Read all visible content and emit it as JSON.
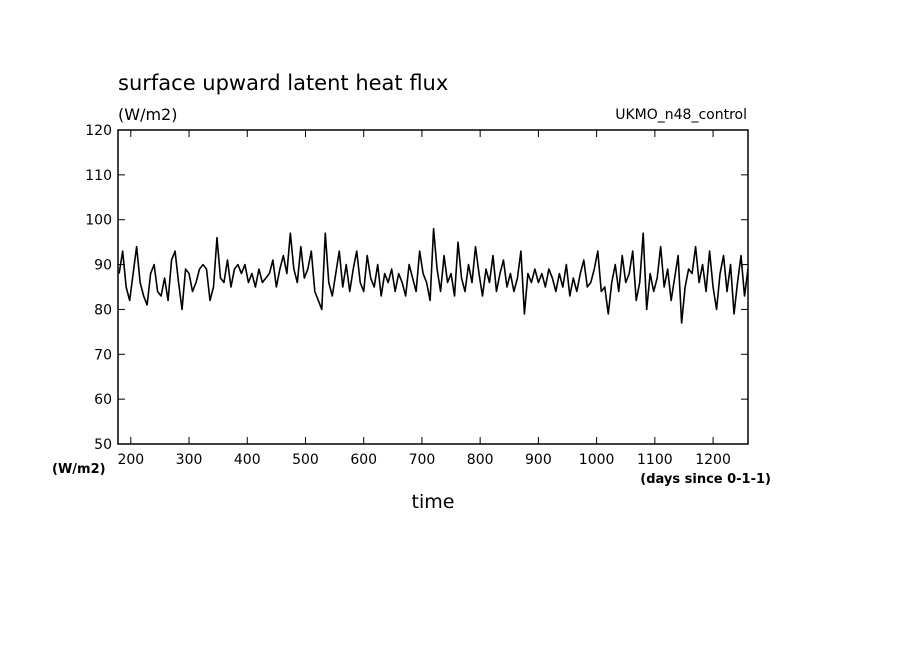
{
  "chart_data": {
    "type": "line",
    "title": "surface upward latent heat flux",
    "units_label": "(W/m2)",
    "subtitle": "UKMO_n48_control",
    "ylabel": "(W/m2)",
    "xunits": "(days since 0-1-1)",
    "xlabel": "time",
    "x": [
      180,
      186,
      192,
      198,
      204,
      210,
      216,
      222,
      228,
      234,
      240,
      246,
      252,
      258,
      264,
      270,
      276,
      282,
      288,
      294,
      300,
      306,
      312,
      318,
      324,
      330,
      336,
      342,
      348,
      354,
      360,
      366,
      372,
      378,
      384,
      390,
      396,
      402,
      408,
      414,
      420,
      426,
      432,
      438,
      444,
      450,
      456,
      462,
      468,
      474,
      480,
      486,
      492,
      498,
      504,
      510,
      516,
      522,
      528,
      534,
      540,
      546,
      552,
      558,
      564,
      570,
      576,
      582,
      588,
      594,
      600,
      606,
      612,
      618,
      624,
      630,
      636,
      642,
      648,
      654,
      660,
      666,
      672,
      678,
      684,
      690,
      696,
      702,
      708,
      714,
      720,
      726,
      732,
      738,
      744,
      750,
      756,
      762,
      768,
      774,
      780,
      786,
      792,
      798,
      804,
      810,
      816,
      822,
      828,
      834,
      840,
      846,
      852,
      858,
      864,
      870,
      876,
      882,
      888,
      894,
      900,
      906,
      912,
      918,
      924,
      930,
      936,
      942,
      948,
      954,
      960,
      966,
      972,
      978,
      984,
      990,
      996,
      1002,
      1008,
      1014,
      1020,
      1026,
      1032,
      1038,
      1044,
      1050,
      1056,
      1062,
      1068,
      1074,
      1080,
      1086,
      1092,
      1098,
      1104,
      1110,
      1116,
      1122,
      1128,
      1134,
      1140,
      1146,
      1152,
      1158,
      1164,
      1170,
      1176,
      1182,
      1188,
      1194,
      1200,
      1206,
      1212,
      1218,
      1224,
      1230,
      1236,
      1242,
      1248,
      1254,
      1260
    ],
    "series": [
      {
        "name": "UKMO_n48_control",
        "color": "#000000",
        "values": [
          88,
          93,
          85,
          82,
          88,
          94,
          86,
          83,
          81,
          88,
          90,
          84,
          83,
          87,
          82,
          91,
          93,
          86,
          80,
          89,
          88,
          84,
          86,
          89,
          90,
          89,
          82,
          85,
          96,
          87,
          86,
          91,
          85,
          89,
          90,
          88,
          90,
          86,
          88,
          85,
          89,
          86,
          87,
          88,
          91,
          85,
          89,
          92,
          88,
          97,
          89,
          86,
          94,
          87,
          89,
          93,
          84,
          82,
          80,
          97,
          86,
          83,
          88,
          93,
          85,
          90,
          84,
          89,
          93,
          86,
          84,
          92,
          87,
          85,
          90,
          83,
          88,
          86,
          89,
          84,
          88,
          86,
          83,
          90,
          87,
          84,
          93,
          88,
          86,
          82,
          98,
          89,
          84,
          92,
          86,
          88,
          83,
          95,
          87,
          84,
          90,
          86,
          94,
          88,
          83,
          89,
          86,
          92,
          84,
          88,
          91,
          85,
          88,
          84,
          87,
          93,
          79,
          88,
          86,
          89,
          86,
          88,
          85,
          89,
          87,
          84,
          88,
          85,
          90,
          83,
          87,
          84,
          88,
          91,
          85,
          86,
          89,
          93,
          84,
          85,
          79,
          86,
          90,
          84,
          92,
          86,
          88,
          93,
          82,
          86,
          97,
          80,
          88,
          84,
          87,
          94,
          85,
          89,
          82,
          87,
          92,
          77,
          85,
          89,
          88,
          94,
          86,
          90,
          84,
          93,
          85,
          80,
          88,
          92,
          84,
          90,
          79,
          86,
          92,
          83,
          89
        ]
      }
    ],
    "xlim": [
      178,
      1260
    ],
    "ylim": [
      50,
      120
    ],
    "xticks": [
      200,
      300,
      400,
      500,
      600,
      700,
      800,
      900,
      1000,
      1100,
      1200
    ],
    "yticks": [
      50,
      60,
      70,
      80,
      90,
      100,
      110,
      120
    ]
  }
}
